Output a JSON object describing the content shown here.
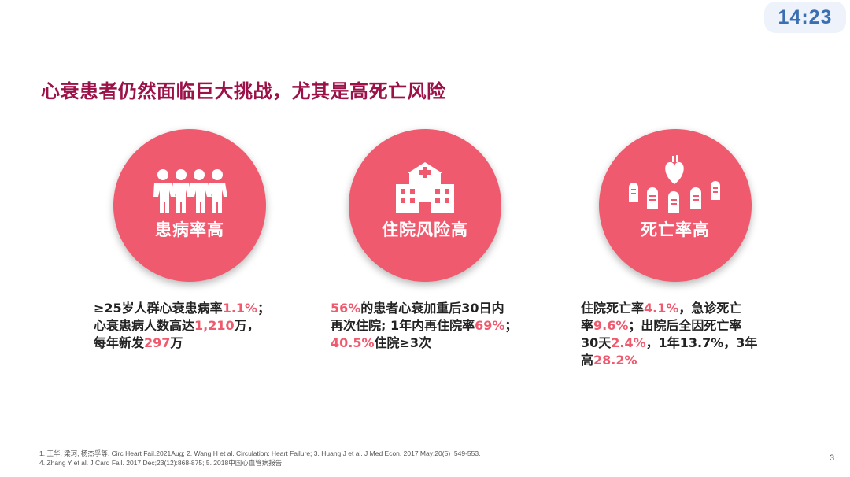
{
  "clock": "14:23",
  "title": "心衰患者仍然面临巨大挑战，尤其是高死亡风险",
  "cards": [
    {
      "icon": "people-icon",
      "label": "患病率高",
      "lines": [
        [
          "≥25岁人群心衰患病率",
          "1.1%",
          "；"
        ],
        [
          "心衰患病人数高达",
          "1,210",
          "万，"
        ],
        [
          "每年新发",
          "297",
          "万"
        ]
      ]
    },
    {
      "icon": "hospital-icon",
      "label": "住院风险高",
      "lines": [
        [
          "",
          "56%",
          "的患者心衰加重后30日内"
        ],
        [
          "再次住院; 1年内再住院率",
          "69%",
          "；"
        ],
        [
          "",
          "40.5%",
          "住院≥3次"
        ]
      ]
    },
    {
      "icon": "heart-tombstones-icon",
      "label": "死亡率高",
      "lines": [
        [
          "住院死亡率",
          "4.1%",
          "，急诊死亡"
        ],
        [
          "率",
          "9.6%",
          "；出院后全因死亡率"
        ],
        [
          "30天",
          "2.4%",
          "，1年13.7%，3年"
        ],
        [
          "高",
          "28.2%",
          ""
        ]
      ]
    }
  ],
  "references": {
    "line1": "1. 王华, 梁珂, 杨杰孚等. Circ Heart Fail.2021Aug;  2. Wang H et al. Circulation: Heart Failure; 3. Huang J et al. J Med Econ. 2017 May;20(5)_549-553.",
    "line2": "4. Zhang Y et al. J Card Fail. 2017 Dec;23(12):868-875; 5. 2018中国心血管病报告."
  },
  "page_number": "3",
  "colors": {
    "accent": "#ef5a6e",
    "title": "#9c1148",
    "clock_text": "#3b6fb3"
  }
}
